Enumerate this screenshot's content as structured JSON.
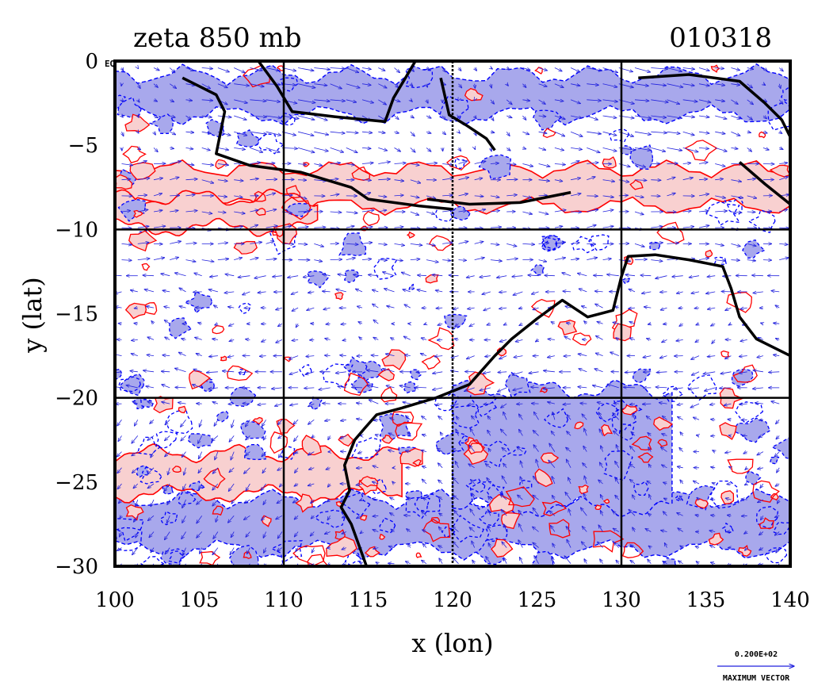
{
  "header": {
    "title_left": "zeta 850 mb",
    "title_right": "010318"
  },
  "corner_label": "EQ",
  "legend": {
    "vector_scale_value": "0.200E+02",
    "vector_caption": "MAXIMUM VECTOR"
  },
  "colors": {
    "positive_fill": "#f8d0d0",
    "positive_line": "#ff0000",
    "negative_fill": "#a8a8ec",
    "negative_line": "#0000ff",
    "vector_color": "#2222dd",
    "coastline": "#000000",
    "grid": "#000000"
  },
  "chart_data": {
    "type": "map",
    "title": "zeta 850 mb",
    "date_label": "010318",
    "xlabel": "x (lon)",
    "ylabel": "y (lat)",
    "xlim": [
      100,
      140
    ],
    "ylim": [
      -30,
      0
    ],
    "x_ticks": [
      "100",
      "105",
      "110",
      "115",
      "120",
      "125",
      "130",
      "135",
      "140"
    ],
    "y_ticks": [
      "0",
      "−5",
      "−10",
      "−15",
      "−20",
      "−25",
      "−30"
    ],
    "grid_lines_lon": [
      110,
      120,
      130
    ],
    "grid_lines_lat": [
      -10,
      -20
    ],
    "fields": [
      "relative vorticity (shaded/contoured)",
      "850 mb wind vectors"
    ],
    "positive_bands": [
      {
        "lon": [
          100,
          140
        ],
        "lat_center": -7.5,
        "lat_halfwidth": 1.1
      },
      {
        "lon": [
          100,
          112
        ],
        "lat_center": -9.0,
        "lat_halfwidth": 0.9
      },
      {
        "lon": [
          100,
          117
        ],
        "lat_center": -24.5,
        "lat_halfwidth": 1.2
      }
    ],
    "negative_bands": [
      {
        "lon": [
          100,
          140
        ],
        "lat_center": -2.0,
        "lat_halfwidth": 1.2
      },
      {
        "lon": [
          100,
          140
        ],
        "lat_center": -27.5,
        "lat_halfwidth": 1.5
      },
      {
        "lon": [
          120,
          133
        ],
        "lat_center": -23.0,
        "lat_halfwidth": 3.5
      }
    ],
    "coastlines": {
      "sumatra_java": [
        [
          104,
          -1
        ],
        [
          106,
          -2
        ],
        [
          106.5,
          -3
        ],
        [
          106,
          -5.5
        ],
        [
          108,
          -6.2
        ],
        [
          111,
          -6.6
        ],
        [
          114,
          -7.5
        ],
        [
          115,
          -8.2
        ],
        [
          118,
          -8.6
        ],
        [
          120,
          -8.8
        ]
      ],
      "timor_chain": [
        [
          118.5,
          -8.2
        ],
        [
          121,
          -8.5
        ],
        [
          124,
          -8.4
        ],
        [
          126,
          -8.0
        ],
        [
          127,
          -7.8
        ]
      ],
      "borneo": [
        [
          108.5,
          0
        ],
        [
          109.6,
          -1.5
        ],
        [
          110.5,
          -3
        ],
        [
          113,
          -3.3
        ],
        [
          116,
          -3.6
        ],
        [
          116.5,
          -2.2
        ],
        [
          117.5,
          -0.5
        ],
        [
          117.8,
          0
        ]
      ],
      "sulawesi": [
        [
          119.3,
          -1
        ],
        [
          119.8,
          -3.2
        ],
        [
          120.8,
          -3.8
        ],
        [
          122,
          -4.6
        ],
        [
          122.5,
          -5.3
        ]
      ],
      "new_guinea": [
        [
          131,
          -1.0
        ],
        [
          134,
          -0.8
        ],
        [
          137,
          -1.2
        ],
        [
          138.5,
          -2.5
        ],
        [
          139.5,
          -3.5
        ],
        [
          140,
          -4.5
        ]
      ],
      "papua_south": [
        [
          137,
          -6.0
        ],
        [
          138.5,
          -7.3
        ],
        [
          140,
          -8.5
        ]
      ],
      "australia_west": [
        [
          140,
          -17.5
        ],
        [
          138,
          -16.5
        ],
        [
          137,
          -15.2
        ],
        [
          136.5,
          -13.5
        ],
        [
          136,
          -12.2
        ],
        [
          134,
          -11.8
        ],
        [
          132,
          -11.5
        ],
        [
          130.4,
          -11.6
        ],
        [
          130.0,
          -12.8
        ],
        [
          129.5,
          -14.8
        ],
        [
          128.0,
          -15.2
        ],
        [
          126.5,
          -14.2
        ],
        [
          125.0,
          -15.3
        ],
        [
          123.5,
          -16.5
        ],
        [
          122.5,
          -17.5
        ],
        [
          121.0,
          -19.2
        ],
        [
          119.0,
          -20.0
        ],
        [
          117.0,
          -20.6
        ],
        [
          115.5,
          -21.0
        ],
        [
          114.8,
          -21.8
        ],
        [
          114.2,
          -22.5
        ],
        [
          113.6,
          -24.0
        ],
        [
          113.9,
          -25.5
        ],
        [
          113.4,
          -26.5
        ],
        [
          114.0,
          -27.5
        ],
        [
          114.4,
          -28.6
        ],
        [
          114.9,
          -30
        ]
      ]
    },
    "max_vector": "0.200E+02"
  }
}
